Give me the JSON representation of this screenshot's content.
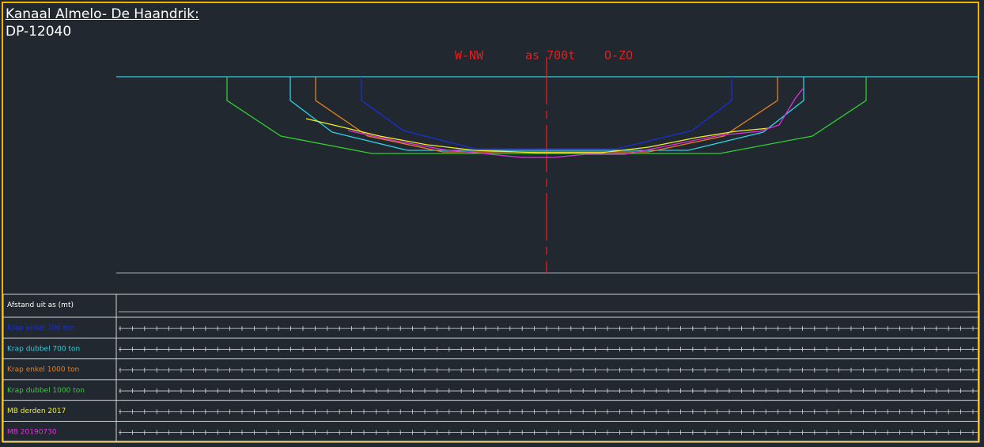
{
  "header": {
    "title": "Kanaal Almelo- De Haandrik:",
    "subtitle": "DP-12040"
  },
  "axis_label": {
    "left": "W-NW",
    "center": "as 700t",
    "right": "O-ZO"
  },
  "table": {
    "header_label": "Afstand uit as (mt)",
    "rows": [
      {
        "label": "Krap enkel 700 ton",
        "color": "#1a2fd6"
      },
      {
        "label": "Krap dubbel 700 ton",
        "color": "#2fd0e0"
      },
      {
        "label": "Krap enkel 1000 ton",
        "color": "#e6801e"
      },
      {
        "label": "Krap dubbel 1000 ton",
        "color": "#30d030"
      },
      {
        "label": "MB derden 2017",
        "color": "#f0f020"
      },
      {
        "label": "MB 20190730",
        "color": "#e030e0"
      }
    ]
  },
  "colors": {
    "frame": "#f0b400",
    "water_line": "#2fd0e0",
    "center_axis": "#e02020",
    "bottom_line": "#8a8f96",
    "grid": "#cfd3d8"
  },
  "chart_data": {
    "type": "line",
    "series": [
      {
        "name": "Krap enkel 700 ton",
        "color": "#1a2fd6",
        "points": [
          [
            457,
            97
          ],
          [
            457,
            127
          ],
          [
            510,
            165
          ],
          [
            600,
            188
          ],
          [
            780,
            188
          ],
          [
            875,
            165
          ],
          [
            925,
            127
          ],
          [
            925,
            97
          ]
        ]
      },
      {
        "name": "Krap dubbel 700 ton",
        "color": "#2fd0e0",
        "points": [
          [
            367,
            97
          ],
          [
            367,
            127
          ],
          [
            420,
            167
          ],
          [
            515,
            190
          ],
          [
            870,
            190
          ],
          [
            965,
            167
          ],
          [
            1016,
            127
          ],
          [
            1016,
            97
          ]
        ]
      },
      {
        "name": "Krap enkel 1000 ton",
        "color": "#e6801e",
        "points": [
          [
            399,
            97
          ],
          [
            399,
            127
          ],
          [
            465,
            172
          ],
          [
            560,
            192
          ],
          [
            820,
            192
          ],
          [
            915,
            172
          ],
          [
            983,
            127
          ],
          [
            983,
            97
          ]
        ]
      },
      {
        "name": "Krap dubbel 1000 ton",
        "color": "#30d030",
        "points": [
          [
            287,
            97
          ],
          [
            287,
            127
          ],
          [
            355,
            172
          ],
          [
            470,
            194
          ],
          [
            910,
            194
          ],
          [
            1027,
            172
          ],
          [
            1095,
            127
          ],
          [
            1095,
            97
          ]
        ]
      },
      {
        "name": "MB derden 2017",
        "color": "#f0f020",
        "points": [
          [
            387,
            150
          ],
          [
            430,
            160
          ],
          [
            480,
            172
          ],
          [
            540,
            183
          ],
          [
            600,
            190
          ],
          [
            680,
            193
          ],
          [
            760,
            193
          ],
          [
            820,
            186
          ],
          [
            880,
            174
          ],
          [
            930,
            166
          ],
          [
            972,
            162
          ]
        ]
      },
      {
        "name": "MB 20190730",
        "color": "#e030e0",
        "points": [
          [
            440,
            165
          ],
          [
            500,
            178
          ],
          [
            560,
            189
          ],
          [
            620,
            195
          ],
          [
            660,
            199
          ],
          [
            700,
            199
          ],
          [
            740,
            195
          ],
          [
            790,
            195
          ],
          [
            850,
            183
          ],
          [
            910,
            171
          ],
          [
            960,
            166
          ],
          [
            985,
            158
          ],
          [
            1005,
            125
          ],
          [
            1015,
            112
          ]
        ]
      }
    ]
  }
}
